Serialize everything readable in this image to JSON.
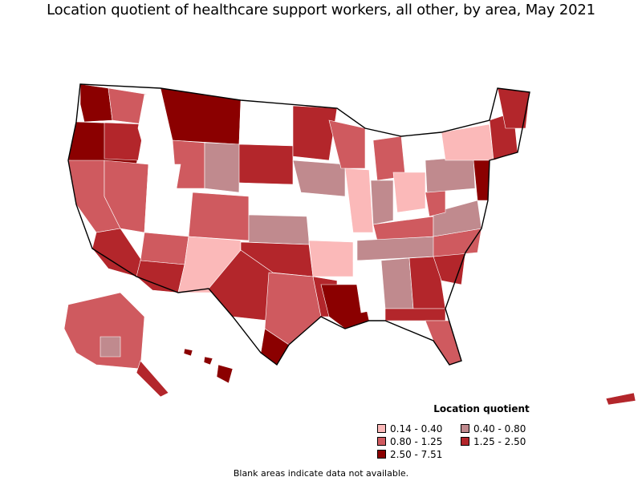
{
  "title": "Location quotient of healthcare support workers, all other, by area, May 2021",
  "legend": {
    "title": "Location quotient",
    "items": [
      {
        "label": "0.14 - 0.40",
        "color": "#fbb9b9"
      },
      {
        "label": "0.40 - 0.80",
        "color": "#c08a8e"
      },
      {
        "label": "0.80 - 1.25",
        "color": "#cf5a5f"
      },
      {
        "label": "1.25 - 2.50",
        "color": "#b3262b"
      },
      {
        "label": "2.50 - 7.51",
        "color": "#8b0000"
      }
    ]
  },
  "note": "Blank areas indicate data not available.",
  "colors": {
    "blank": "#ffffff",
    "border": "#000000"
  }
}
